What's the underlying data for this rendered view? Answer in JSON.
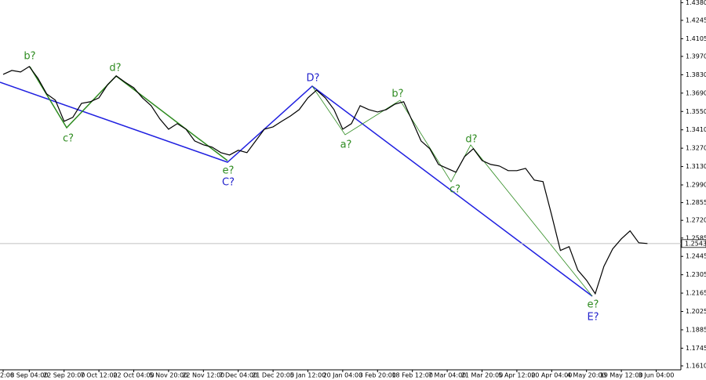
{
  "chart_data": {
    "type": "line",
    "categories": [
      "2:00",
      null,
      null,
      "8 Sep 04:00",
      null,
      null,
      null,
      "22 Sep 20:00",
      null,
      null,
      null,
      "7 Oct 12:00",
      null,
      null,
      null,
      "22 Oct 04:00",
      null,
      null,
      null,
      "5 Nov 20:00",
      null,
      null,
      null,
      "22 Nov 12:00",
      null,
      null,
      null,
      "7 Dec 04:00",
      null,
      null,
      null,
      "21 Dec 20:00",
      null,
      null,
      null,
      "5 Jan 12:00",
      null,
      null,
      null,
      "20 Jan 04:00",
      null,
      null,
      null,
      "3 Feb 20:00",
      null,
      null,
      null,
      "18 Feb 12:00",
      null,
      null,
      null,
      "7 Mar 04:00",
      null,
      null,
      null,
      "21 Mar 20:00",
      null,
      null,
      null,
      "5 Apr 12:00",
      null,
      null,
      null,
      "20 Apr 04:00",
      null,
      null,
      null,
      "4 May 20:00",
      null,
      null,
      null,
      "19 May 12:00",
      null,
      null,
      null,
      "3 Jun 04:00",
      null,
      null
    ],
    "values": [
      1.3833,
      1.3863,
      1.3851,
      1.3893,
      1.3803,
      1.3684,
      1.3636,
      1.3475,
      1.3505,
      1.3612,
      1.3624,
      1.3654,
      1.3755,
      1.3821,
      1.3773,
      1.3731,
      1.3654,
      1.3594,
      1.3493,
      1.3415,
      1.3457,
      1.3415,
      1.3325,
      1.3296,
      1.3278,
      1.3236,
      1.3218,
      1.3254,
      1.3236,
      1.3325,
      1.3415,
      1.3433,
      1.3475,
      1.3516,
      1.3564,
      1.3654,
      1.3713,
      1.3654,
      1.3564,
      1.3415,
      1.3457,
      1.3594,
      1.3564,
      1.3546,
      1.3564,
      1.3606,
      1.3624,
      1.3475,
      1.3325,
      1.3266,
      1.3146,
      1.3116,
      1.3087,
      1.3206,
      1.3266,
      1.3176,
      1.3146,
      1.3134,
      1.3099,
      1.3099,
      1.3116,
      1.3027,
      1.3015,
      1.2758,
      1.249,
      1.2519,
      1.234,
      1.2263,
      1.2161,
      1.237,
      1.2502,
      1.2579,
      1.2639,
      1.2549,
      1.2543,
      null,
      null,
      null
    ],
    "color": "#000000",
    "current_price": 1.2543,
    "ylim": [
      1.158,
      1.44
    ],
    "yticks": [
      {
        "value": 1.438,
        "label": "1.4380"
      },
      1.4245,
      1.4105,
      {
        "value": 1.397,
        "label": "1.3970"
      },
      {
        "value": 1.383,
        "label": "1.3830"
      },
      {
        "value": 1.369,
        "label": "1.3690"
      },
      {
        "value": 1.355,
        "label": "1.3550"
      },
      {
        "value": 1.341,
        "label": "1.3410"
      },
      {
        "value": 1.327,
        "label": "1.3270"
      },
      {
        "value": 1.313,
        "label": "1.3130"
      },
      {
        "value": 1.299,
        "label": "1.2990"
      },
      1.2855,
      {
        "value": 1.272,
        "label": "1.2720"
      },
      1.2585,
      1.2445,
      1.2305,
      1.2165,
      1.2025,
      1.1885,
      1.1745,
      {
        "value": 1.161,
        "label": "1.1610"
      }
    ],
    "annotations": [
      {
        "text": "b?",
        "color": "#2e8b20"
      },
      {
        "text": "c?",
        "color": "#2e8b20"
      },
      {
        "text": "d?",
        "color": "#2e8b20"
      },
      {
        "text": "e?",
        "color": "#2e8b20"
      },
      {
        "text": "C?",
        "color": "#2222cc"
      },
      {
        "text": "D?",
        "color": "#2222cc"
      },
      {
        "text": "a?",
        "color": "#2e8b20"
      },
      {
        "text": "b?",
        "color": "#2e8b20"
      },
      {
        "text": "c?",
        "color": "#2e8b20"
      },
      {
        "text": "d?",
        "color": "#2e8b20"
      },
      {
        "text": "e?",
        "color": "#2e8b20"
      },
      {
        "text": "E?",
        "color": "#2222cc"
      }
    ]
  }
}
